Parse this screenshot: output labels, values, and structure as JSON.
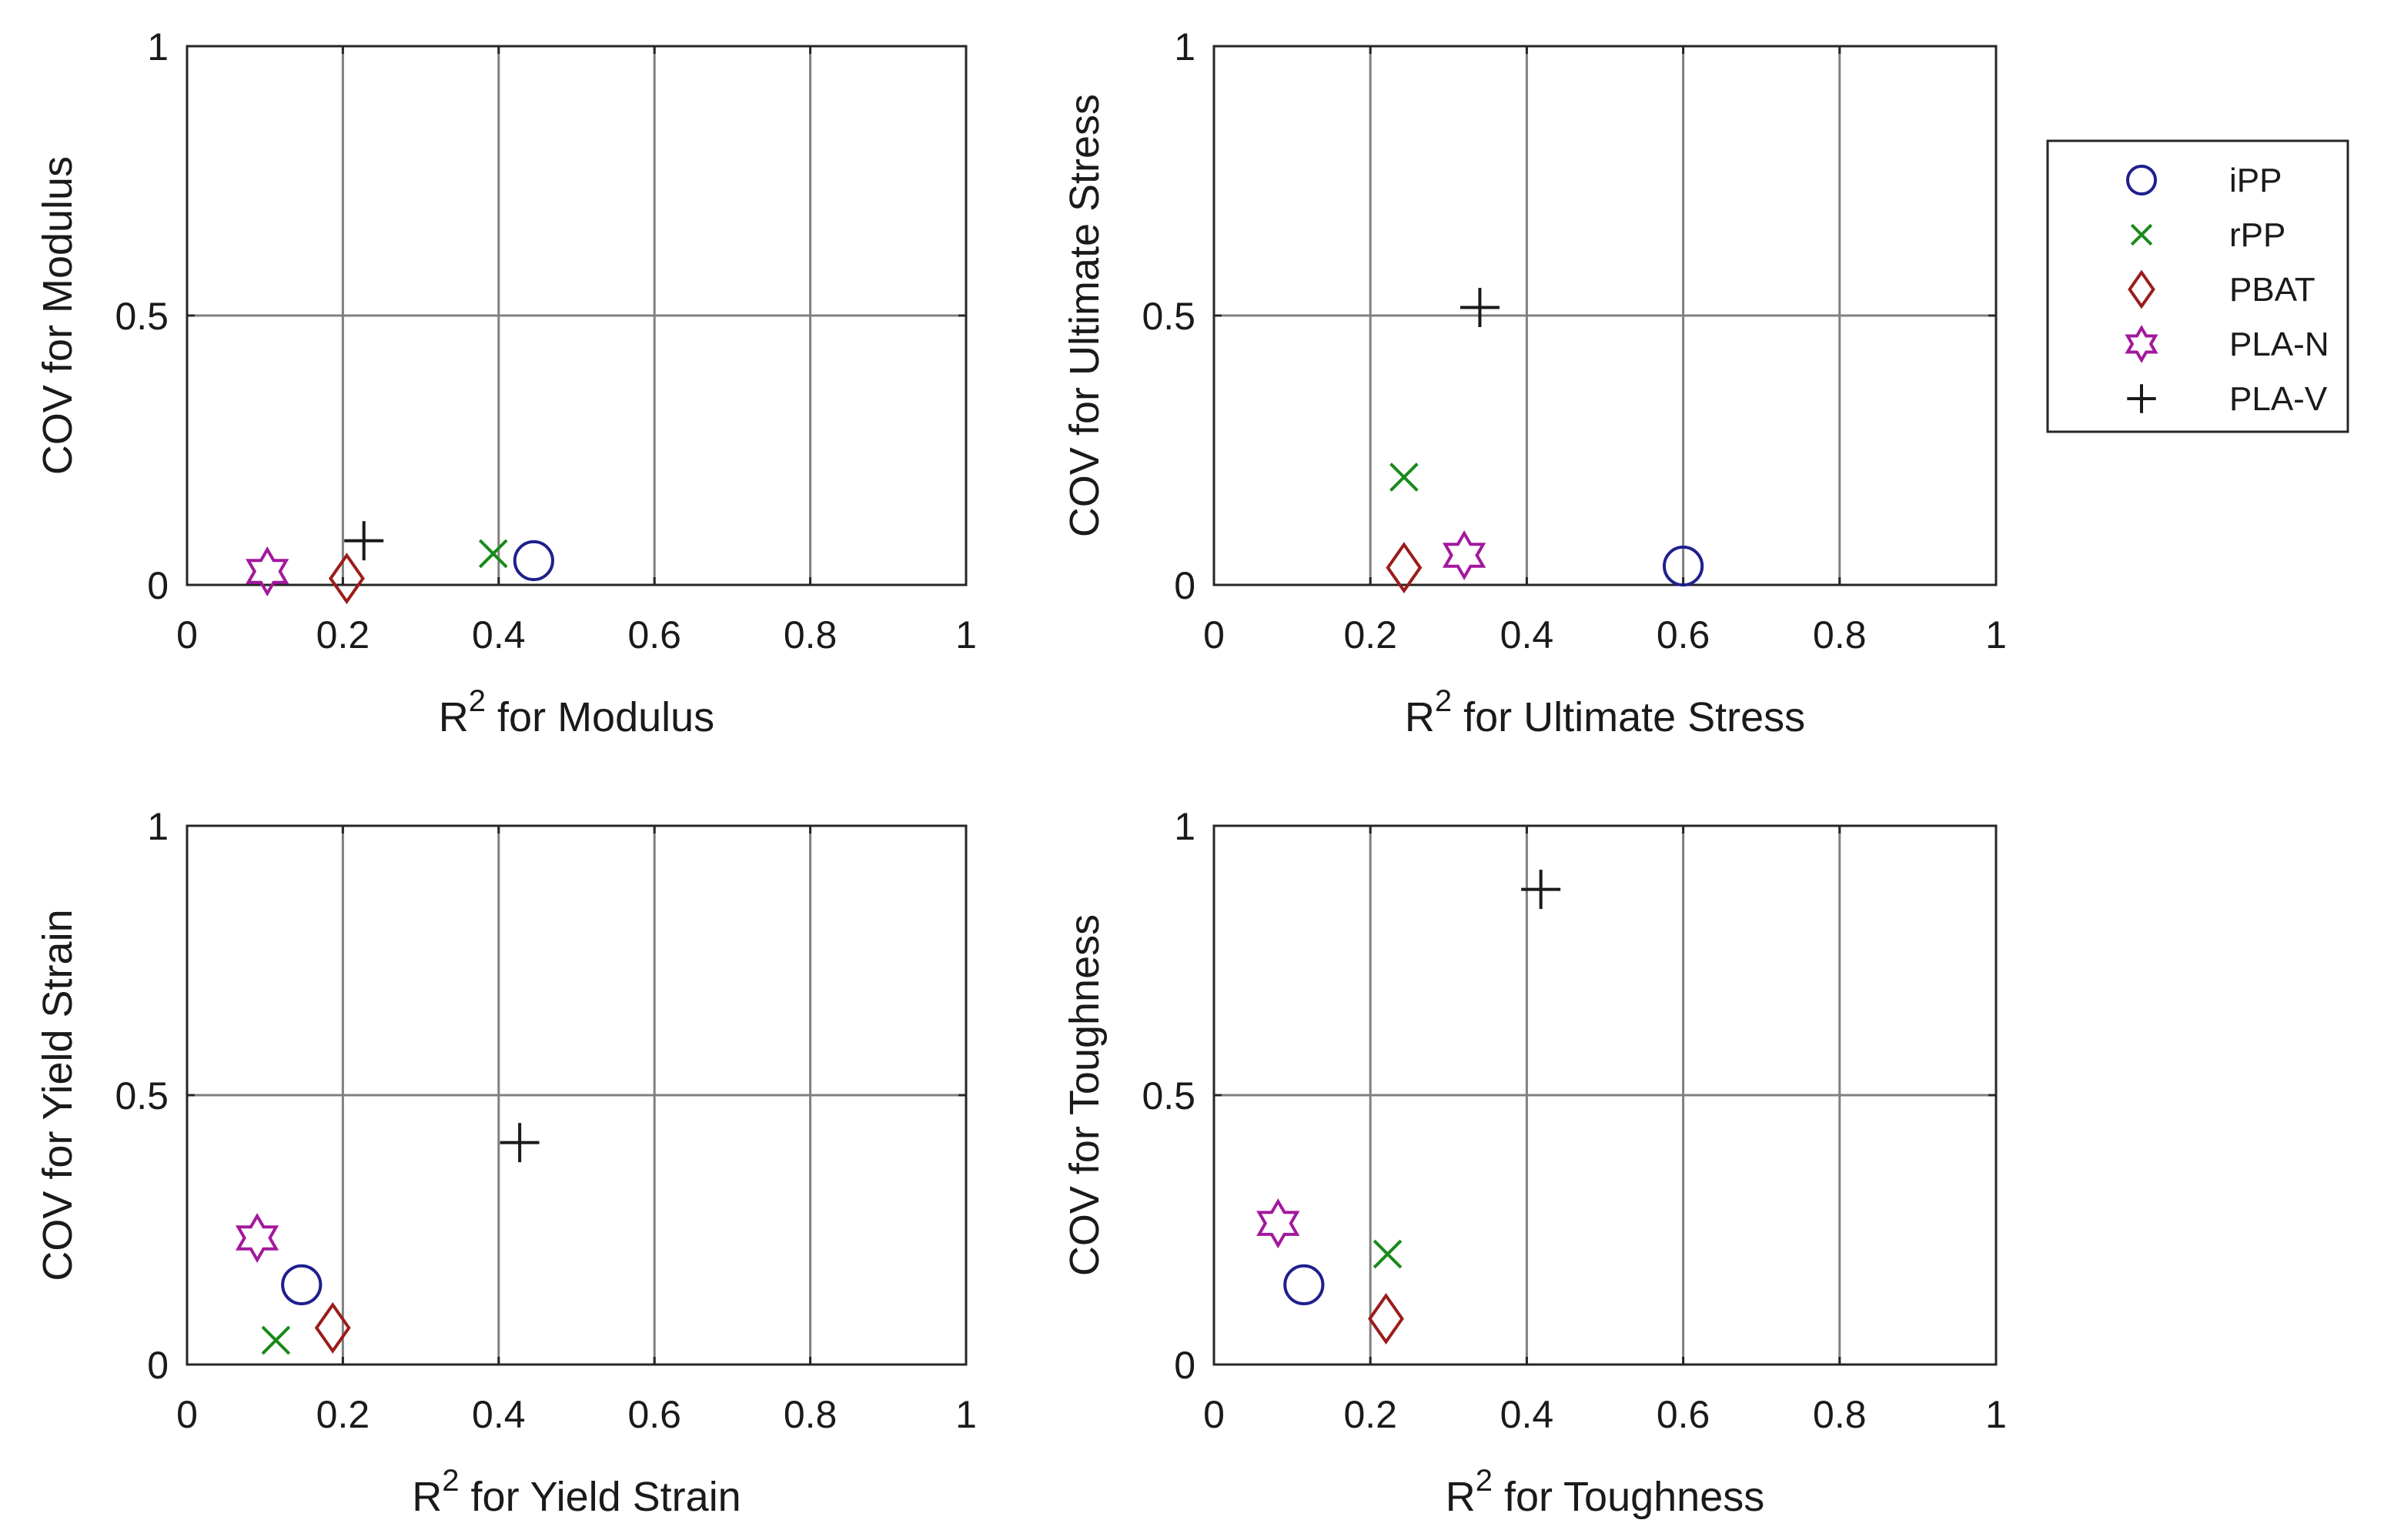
{
  "series_styles": [
    {
      "name": "iPP",
      "marker": "circle-icon",
      "color": "#1f1f8f"
    },
    {
      "name": "rPP",
      "marker": "x-mark-icon",
      "color": "#1a8a1a"
    },
    {
      "name": "PBAT",
      "marker": "diamond-icon",
      "color": "#9b1c1c"
    },
    {
      "name": "PLA-N",
      "marker": "hexagram-star-icon",
      "color": "#a3189e"
    },
    {
      "name": "PLA-V",
      "marker": "plus-icon",
      "color": "#1a1a1a"
    }
  ],
  "legend": {
    "placement": "top-right, outside plots",
    "entries": [
      "iPP",
      "rPP",
      "PBAT",
      "PLA-N",
      "PLA-V"
    ]
  },
  "chart_data": [
    {
      "type": "scatter",
      "title": "",
      "xlabel_base": "R",
      "xlabel_sup": "2",
      "xlabel_rest": " for Modulus",
      "ylabel": "COV for Modulus",
      "xlim": [
        0,
        1
      ],
      "ylim": [
        0,
        1
      ],
      "xticks": [
        "0",
        "0.2",
        "0.4",
        "0.6",
        "0.8",
        "1"
      ],
      "yticks": [
        "0",
        "0.5",
        "1"
      ],
      "xtick_values": [
        0,
        0.2,
        0.4,
        0.6,
        0.8,
        1
      ],
      "ytick_values": [
        0,
        0.5,
        1
      ],
      "grid": true,
      "series": [
        {
          "name": "iPP",
          "x": [
            0.445
          ],
          "y": [
            0.045
          ]
        },
        {
          "name": "rPP",
          "x": [
            0.393
          ],
          "y": [
            0.058
          ]
        },
        {
          "name": "PBAT",
          "x": [
            0.205
          ],
          "y": [
            0.012
          ]
        },
        {
          "name": "PLA-N",
          "x": [
            0.103
          ],
          "y": [
            0.025
          ]
        },
        {
          "name": "PLA-V",
          "x": [
            0.227
          ],
          "y": [
            0.082
          ]
        }
      ]
    },
    {
      "type": "scatter",
      "title": "",
      "xlabel_base": "R",
      "xlabel_sup": "2",
      "xlabel_rest": " for Ultimate Stress",
      "ylabel": "COV for Ultimate Stress",
      "xlim": [
        0,
        1
      ],
      "ylim": [
        0,
        1
      ],
      "xticks": [
        "0",
        "0.2",
        "0.4",
        "0.6",
        "0.8",
        "1"
      ],
      "yticks": [
        "0",
        "0.5",
        "1"
      ],
      "xtick_values": [
        0,
        0.2,
        0.4,
        0.6,
        0.8,
        1
      ],
      "ytick_values": [
        0,
        0.5,
        1
      ],
      "grid": true,
      "series": [
        {
          "name": "iPP",
          "x": [
            0.6
          ],
          "y": [
            0.035
          ]
        },
        {
          "name": "rPP",
          "x": [
            0.243
          ],
          "y": [
            0.2
          ]
        },
        {
          "name": "PBAT",
          "x": [
            0.243
          ],
          "y": [
            0.032
          ]
        },
        {
          "name": "PLA-N",
          "x": [
            0.32
          ],
          "y": [
            0.055
          ]
        },
        {
          "name": "PLA-V",
          "x": [
            0.34
          ],
          "y": [
            0.515
          ]
        }
      ]
    },
    {
      "type": "scatter",
      "title": "",
      "xlabel_base": "R",
      "xlabel_sup": "2",
      "xlabel_rest": " for Yield Strain",
      "ylabel": "COV for Yield Strain",
      "xlim": [
        0,
        1
      ],
      "ylim": [
        0,
        1
      ],
      "xticks": [
        "0",
        "0.2",
        "0.4",
        "0.6",
        "0.8",
        "1"
      ],
      "yticks": [
        "0",
        "0.5",
        "1"
      ],
      "xtick_values": [
        0,
        0.2,
        0.4,
        0.6,
        0.8,
        1
      ],
      "ytick_values": [
        0,
        0.5,
        1
      ],
      "grid": true,
      "series": [
        {
          "name": "iPP",
          "x": [
            0.147
          ],
          "y": [
            0.148
          ]
        },
        {
          "name": "rPP",
          "x": [
            0.114
          ],
          "y": [
            0.045
          ]
        },
        {
          "name": "PBAT",
          "x": [
            0.187
          ],
          "y": [
            0.068
          ]
        },
        {
          "name": "PLA-N",
          "x": [
            0.09
          ],
          "y": [
            0.235
          ]
        },
        {
          "name": "PLA-V",
          "x": [
            0.427
          ],
          "y": [
            0.412
          ]
        }
      ]
    },
    {
      "type": "scatter",
      "title": "",
      "xlabel_base": "R",
      "xlabel_sup": "2",
      "xlabel_rest": " for Toughness",
      "ylabel": "COV for Toughness",
      "xlim": [
        0,
        1
      ],
      "ylim": [
        0,
        1
      ],
      "xticks": [
        "0",
        "0.2",
        "0.4",
        "0.6",
        "0.8",
        "1"
      ],
      "yticks": [
        "0",
        "0.5",
        "1"
      ],
      "xtick_values": [
        0,
        0.2,
        0.4,
        0.6,
        0.8,
        1
      ],
      "ytick_values": [
        0,
        0.5,
        1
      ],
      "grid": true,
      "series": [
        {
          "name": "iPP",
          "x": [
            0.115
          ],
          "y": [
            0.148
          ]
        },
        {
          "name": "rPP",
          "x": [
            0.222
          ],
          "y": [
            0.205
          ]
        },
        {
          "name": "PBAT",
          "x": [
            0.22
          ],
          "y": [
            0.085
          ]
        },
        {
          "name": "PLA-N",
          "x": [
            0.082
          ],
          "y": [
            0.262
          ]
        },
        {
          "name": "PLA-V",
          "x": [
            0.418
          ],
          "y": [
            0.882
          ]
        }
      ]
    }
  ]
}
